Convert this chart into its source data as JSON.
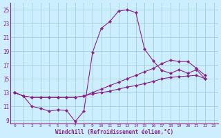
{
  "xlabel": "Windchill (Refroidissement éolien,°C)",
  "bg_color": "#cceeff",
  "line_color": "#882288",
  "grid_color": "#99cccc",
  "xlim": [
    -0.5,
    23.5
  ],
  "ylim": [
    8.5,
    26.0
  ],
  "yticks": [
    9,
    11,
    13,
    15,
    17,
    19,
    21,
    23,
    25
  ],
  "xticks": [
    0,
    1,
    2,
    3,
    4,
    5,
    6,
    7,
    8,
    9,
    10,
    11,
    12,
    13,
    14,
    15,
    16,
    17,
    18,
    19,
    20,
    21,
    22,
    23
  ],
  "series1_x": [
    0,
    1,
    2,
    3,
    4,
    5,
    6,
    7,
    8,
    9,
    10,
    11,
    12,
    13,
    14,
    15,
    16,
    17,
    18,
    19,
    20,
    21,
    22
  ],
  "series1_y": [
    13.0,
    12.5,
    11.0,
    10.7,
    10.3,
    10.5,
    10.4,
    8.8,
    10.3,
    18.8,
    22.3,
    23.3,
    24.8,
    25.0,
    24.6,
    19.3,
    17.6,
    16.2,
    15.8,
    16.3,
    15.8,
    16.3,
    15.0
  ],
  "series2_x": [
    0,
    1,
    2,
    3,
    4,
    5,
    6,
    7,
    8,
    9,
    10,
    11,
    12,
    13,
    14,
    15,
    16,
    17,
    18,
    19,
    20,
    21,
    22
  ],
  "series2_y": [
    13.0,
    12.5,
    12.3,
    12.3,
    12.3,
    12.3,
    12.3,
    12.3,
    12.5,
    13.0,
    13.5,
    14.0,
    14.5,
    15.0,
    15.5,
    16.0,
    16.5,
    17.2,
    17.7,
    17.5,
    17.5,
    16.5,
    15.5
  ],
  "series3_x": [
    0,
    1,
    2,
    3,
    4,
    5,
    6,
    7,
    8,
    9,
    10,
    11,
    12,
    13,
    14,
    15,
    16,
    17,
    18,
    19,
    20,
    21,
    22
  ],
  "series3_y": [
    13.0,
    12.5,
    12.3,
    12.3,
    12.3,
    12.3,
    12.3,
    12.3,
    12.5,
    12.8,
    13.0,
    13.2,
    13.5,
    13.8,
    14.0,
    14.3,
    14.6,
    15.0,
    15.2,
    15.3,
    15.4,
    15.5,
    15.0
  ]
}
